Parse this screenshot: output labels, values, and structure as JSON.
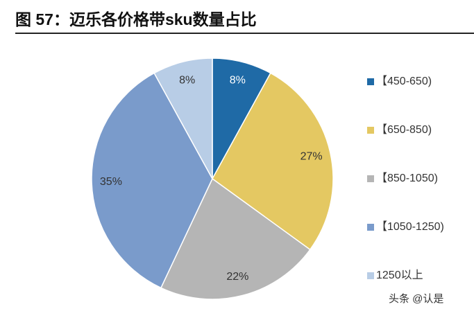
{
  "chart_data": {
    "type": "pie",
    "title": "图 57：迈乐各价格带sku数量占比",
    "categories": [
      "【450-650)",
      "【650-850)",
      "【850-1050)",
      "【1050-1250)",
      "1250以上"
    ],
    "values": [
      8,
      27,
      22,
      35,
      8
    ],
    "value_labels": [
      "8%",
      "27%",
      "22%",
      "35%",
      "8%"
    ],
    "colors": [
      "#1f6aa6",
      "#e4c862",
      "#b5b5b5",
      "#7a9bcb",
      "#b8cde6"
    ],
    "legend": "right",
    "watermark": "头条 @认是"
  }
}
